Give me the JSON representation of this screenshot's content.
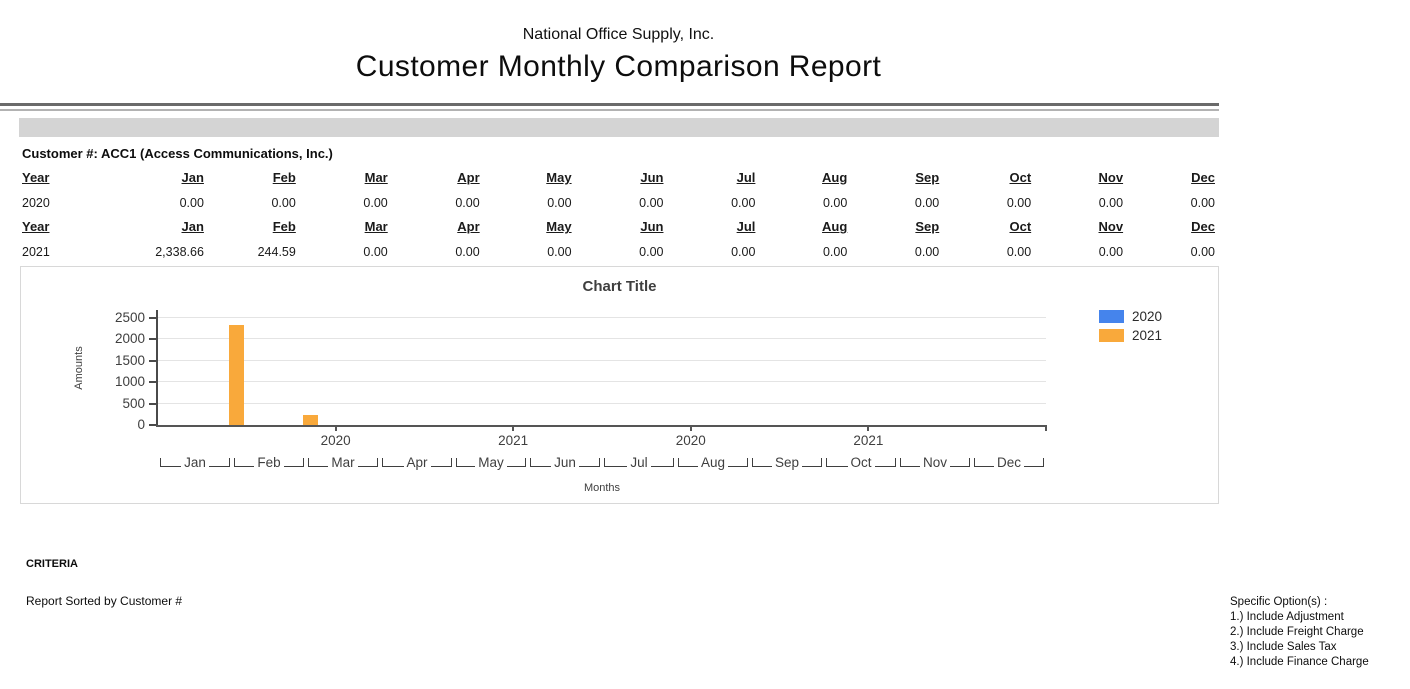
{
  "header": {
    "company": "National Office Supply, Inc.",
    "title": "Customer Monthly Comparison Report"
  },
  "customer_line": "Customer #: ACC1 (Access Communications, Inc.)",
  "table": {
    "year_header": "Year",
    "months": [
      "Jan",
      "Feb",
      "Mar",
      "Apr",
      "May",
      "Jun",
      "Jul",
      "Aug",
      "Sep",
      "Oct",
      "Nov",
      "Dec"
    ],
    "groups": [
      {
        "year": "2020",
        "values": [
          "0.00",
          "0.00",
          "0.00",
          "0.00",
          "0.00",
          "0.00",
          "0.00",
          "0.00",
          "0.00",
          "0.00",
          "0.00",
          "0.00"
        ]
      },
      {
        "year": "2021",
        "values": [
          "2,338.66",
          "244.59",
          "0.00",
          "0.00",
          "0.00",
          "0.00",
          "0.00",
          "0.00",
          "0.00",
          "0.00",
          "0.00",
          "0.00"
        ]
      }
    ]
  },
  "chart_data": {
    "type": "bar",
    "title": "Chart Title",
    "xlabel": "Months",
    "ylabel": "Amounts",
    "categories": [
      "Jan",
      "Feb",
      "Mar",
      "Apr",
      "May",
      "Jun",
      "Jul",
      "Aug",
      "Sep",
      "Oct",
      "Nov",
      "Dec"
    ],
    "series": [
      {
        "name": "2020",
        "color": "#4584EC",
        "values": [
          0,
          0,
          0,
          0,
          0,
          0,
          0,
          0,
          0,
          0,
          0,
          0
        ]
      },
      {
        "name": "2021",
        "color": "#F9A93B",
        "values": [
          2338.66,
          244.59,
          0,
          0,
          0,
          0,
          0,
          0,
          0,
          0,
          0,
          0
        ]
      }
    ],
    "ylim": [
      0,
      2500
    ],
    "yticks": [
      0,
      500,
      1000,
      1500,
      2000,
      2500
    ],
    "axis_year_labels": [
      "2020",
      "2021",
      "2020",
      "2021"
    ],
    "legend_position": "right",
    "grid": true
  },
  "criteria": {
    "heading": "CRITERIA",
    "sorted_by": "Report Sorted by Customer #"
  },
  "options": {
    "heading": "Specific Option(s) :",
    "items": [
      "1.) Include Adjustment",
      "2.) Include Freight Charge",
      "3.) Include Sales Tax",
      "4.) Include Finance Charge"
    ]
  }
}
